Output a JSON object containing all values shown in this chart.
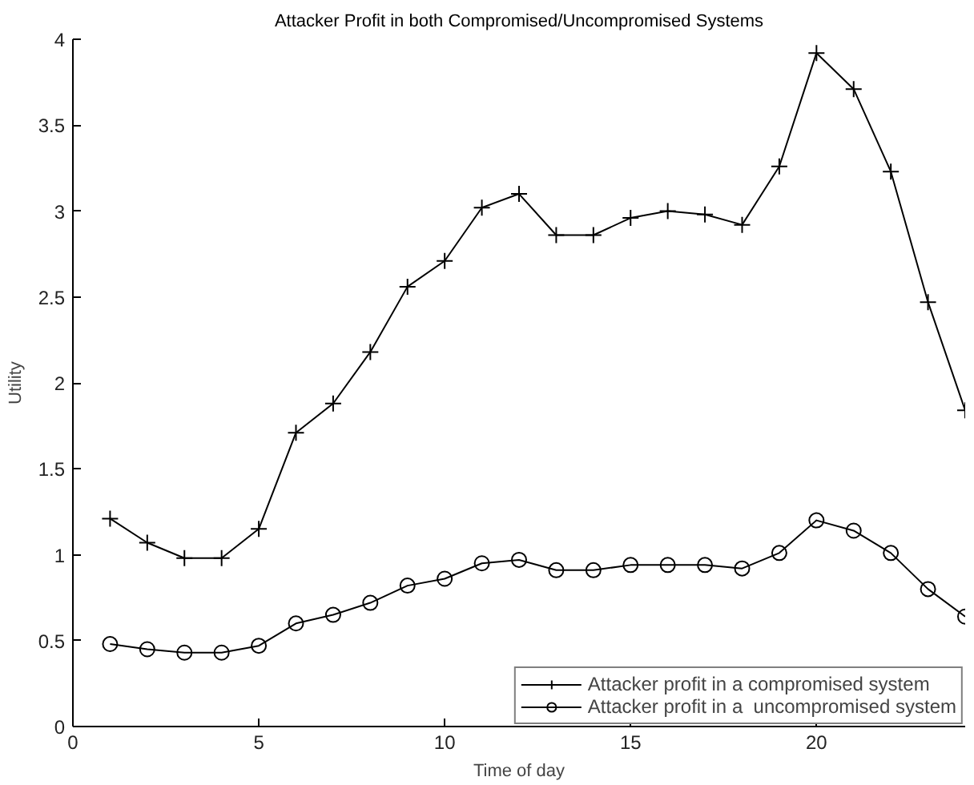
{
  "chart_data": {
    "type": "line",
    "title": "Attacker Profit in both Compromised/Uncompromised Systems",
    "xlabel": "Time of day",
    "ylabel": "Utility",
    "x": [
      1,
      2,
      3,
      4,
      5,
      6,
      7,
      8,
      9,
      10,
      11,
      12,
      13,
      14,
      15,
      16,
      17,
      18,
      19,
      20,
      21,
      22,
      23,
      24
    ],
    "series": [
      {
        "name": "Attacker profit in a compromised system",
        "color": "#000000",
        "marker": "cross",
        "values": [
          1.21,
          1.07,
          0.98,
          0.98,
          1.15,
          1.71,
          1.88,
          2.18,
          2.56,
          2.71,
          3.02,
          3.1,
          2.86,
          2.86,
          2.96,
          3.0,
          2.98,
          2.92,
          3.26,
          3.92,
          3.71,
          3.23,
          2.47,
          1.84
        ]
      },
      {
        "name": "Attacker profit in a  uncompromised system",
        "color": "#000000",
        "marker": "circle",
        "values": [
          0.48,
          0.45,
          0.43,
          0.43,
          0.47,
          0.6,
          0.65,
          0.72,
          0.82,
          0.86,
          0.95,
          0.97,
          0.91,
          0.91,
          0.94,
          0.94,
          0.94,
          0.92,
          1.01,
          1.2,
          1.14,
          1.01,
          0.8,
          0.64
        ]
      }
    ],
    "xlim": [
      0,
      24
    ],
    "ylim": [
      0,
      4
    ],
    "xticks": [
      0,
      5,
      10,
      15,
      20
    ],
    "yticks": [
      0,
      0.5,
      1,
      1.5,
      2,
      2.5,
      3,
      3.5,
      4
    ],
    "legend": "bottom right",
    "line_style": "solid"
  }
}
